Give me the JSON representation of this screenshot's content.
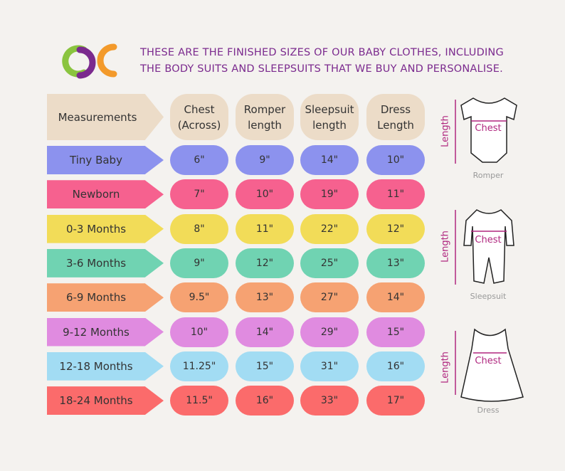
{
  "header": {
    "title_lines": [
      "THESE ARE THE FINISHED SIZES OF OUR BABY CLOTHES, INCLUDING",
      "THE BODY SUITS AND SLEEPSUITS THAT WE BUY AND PERSONALISE."
    ]
  },
  "table": {
    "columns": [
      "Measurements",
      "Chest (Across)",
      "Romper length",
      "Sleepsuit length",
      "Dress Length"
    ],
    "rows": [
      {
        "label": "Tiny Baby",
        "color": "#8c92ee",
        "values": [
          "6\"",
          "9\"",
          "14\"",
          "10\""
        ]
      },
      {
        "label": "Newborn",
        "color": "#f6618f",
        "values": [
          "7\"",
          "10\"",
          "19\"",
          "11\""
        ]
      },
      {
        "label": "0-3 Months",
        "color": "#f2dc58",
        "values": [
          "8\"",
          "11\"",
          "22\"",
          "12\""
        ]
      },
      {
        "label": "3-6 Months",
        "color": "#70d3b2",
        "values": [
          "9\"",
          "12\"",
          "25\"",
          "13\""
        ]
      },
      {
        "label": "6-9 Months",
        "color": "#f6a272",
        "values": [
          "9.5\"",
          "13\"",
          "27\"",
          "14\""
        ]
      },
      {
        "label": "9-12 Months",
        "color": "#e08be0",
        "values": [
          "10\"",
          "14\"",
          "29\"",
          "15\""
        ]
      },
      {
        "label": "12-18 Months",
        "color": "#a2dcf3",
        "values": [
          "11.25\"",
          "15\"",
          "31\"",
          "16\""
        ]
      },
      {
        "label": "18-24 Months",
        "color": "#fb6b6b",
        "values": [
          "11.5\"",
          "16\"",
          "33\"",
          "17\""
        ]
      }
    ]
  },
  "garments": [
    {
      "name": "Romper",
      "length_label": "Length",
      "chest_label": "Chest"
    },
    {
      "name": "Sleepsuit",
      "length_label": "Length",
      "chest_label": "Chest"
    },
    {
      "name": "Dress",
      "length_label": "Length",
      "chest_label": "Chest"
    }
  ]
}
